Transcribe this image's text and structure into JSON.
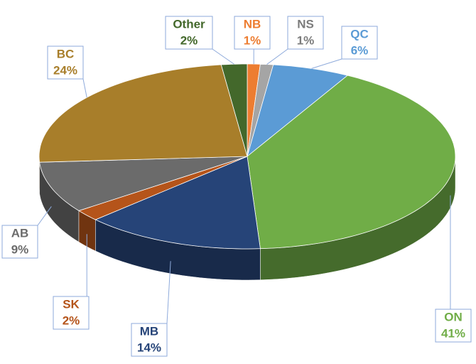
{
  "chart_data": {
    "type": "pie3d",
    "categories": [
      "NB",
      "NS",
      "QC",
      "ON",
      "MB",
      "SK",
      "AB",
      "BC",
      "Other"
    ],
    "values": [
      1,
      1,
      6,
      41,
      14,
      2,
      9,
      24,
      2
    ],
    "value_labels": [
      "1%",
      "1%",
      "6%",
      "41%",
      "14%",
      "2%",
      "9%",
      "24%",
      "2%"
    ],
    "colors": [
      "#ed7d31",
      "#a5a5a5",
      "#5b9bd5",
      "#70ad47",
      "#264478",
      "#b5541a",
      "#6b6b6b",
      "#a87e2a",
      "#43682b"
    ]
  }
}
